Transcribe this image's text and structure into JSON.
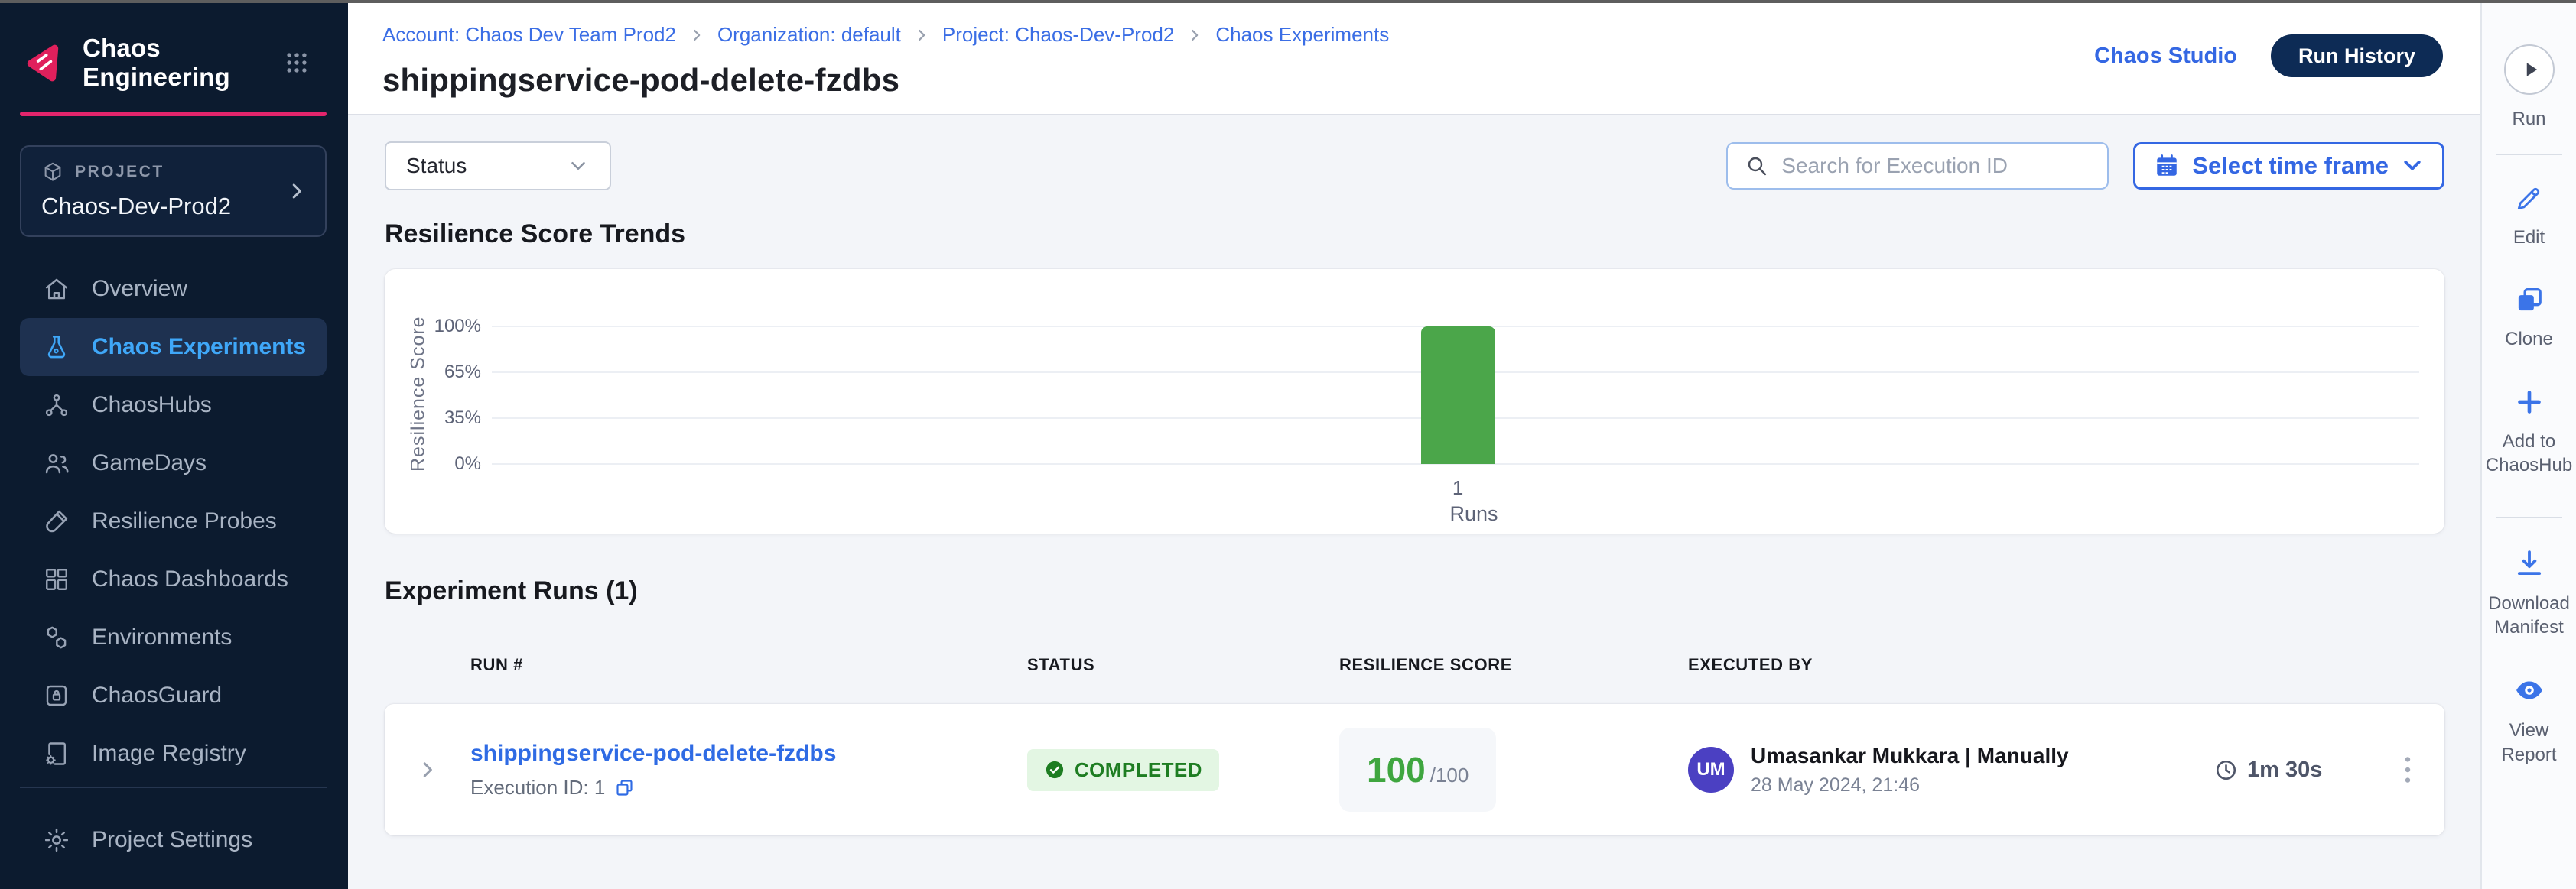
{
  "sidebar": {
    "app_title": "Chaos Engineering",
    "project": {
      "label": "PROJECT",
      "name": "Chaos-Dev-Prod2"
    },
    "items": [
      {
        "label": "Overview",
        "icon": "home-icon",
        "active": false
      },
      {
        "label": "Chaos Experiments",
        "icon": "flask-icon",
        "active": true
      },
      {
        "label": "ChaosHubs",
        "icon": "hub-icon",
        "active": false
      },
      {
        "label": "GameDays",
        "icon": "people-icon",
        "active": false
      },
      {
        "label": "Resilience Probes",
        "icon": "probe-icon",
        "active": false
      },
      {
        "label": "Chaos Dashboards",
        "icon": "dashboard-icon",
        "active": false
      },
      {
        "label": "Environments",
        "icon": "hexagons-icon",
        "active": false
      },
      {
        "label": "ChaosGuard",
        "icon": "lock-icon",
        "active": false
      },
      {
        "label": "Image Registry",
        "icon": "registry-icon",
        "active": false
      }
    ],
    "settings_label": "Project Settings"
  },
  "header": {
    "breadcrumb": [
      "Account: Chaos Dev Team Prod2",
      "Organization: default",
      "Project: Chaos-Dev-Prod2",
      "Chaos Experiments"
    ],
    "page_title": "shippingservice-pod-delete-fzdbs",
    "actions": {
      "chaos_studio": "Chaos Studio",
      "run_history": "Run History"
    }
  },
  "filters": {
    "status_label": "Status",
    "search_placeholder": "Search for Execution ID",
    "time_frame_label": "Select time frame"
  },
  "chart_data": {
    "type": "bar",
    "title": "Resilience Score Trends",
    "ylabel": "Resilience Score",
    "xlabel": "Runs",
    "yticks": [
      "100%",
      "65%",
      "35%",
      "0%"
    ],
    "categories": [
      "1"
    ],
    "values": [
      100
    ],
    "ylim": [
      0,
      100
    ],
    "bar_color": "#4BA64A",
    "grid": "horizontal",
    "legend": "none"
  },
  "runs": {
    "section_title": "Experiment Runs (1)",
    "columns": [
      "RUN #",
      "STATUS",
      "RESILIENCE SCORE",
      "EXECUTED BY"
    ],
    "rows": [
      {
        "name": "shippingservice-pod-delete-fzdbs",
        "execution_id": "Execution ID: 1",
        "status": "COMPLETED",
        "score": "100",
        "score_total": "/100",
        "avatar": "UM",
        "executed_by": "Umasankar Mukkara | Manually",
        "executed_at": "28 May 2024, 21:46",
        "duration": "1m 30s"
      }
    ]
  },
  "right_rail": {
    "items": [
      {
        "label": "Run",
        "icon": "play-icon"
      },
      {
        "label": "Edit",
        "icon": "pencil-icon"
      },
      {
        "label": "Clone",
        "icon": "clone-icon"
      },
      {
        "label": "Add to ChaosHub",
        "icon": "plus-icon"
      },
      {
        "label": "Download Manifest",
        "icon": "download-icon"
      },
      {
        "label": "View Report",
        "icon": "eye-icon"
      }
    ]
  },
  "colors": {
    "accent": "#3467E3",
    "link": "#3B6EE5",
    "pink": "#E3256C",
    "navy": "#0D2B55",
    "sidebar_bg": "#0C1B2F",
    "sidebar_active_bg": "#1E3150",
    "sidebar_active_text": "#3FA7F8",
    "bar_green": "#4BA64A",
    "score_green": "#3FA63F",
    "badge_bg": "#E3F6E3",
    "badge_text": "#1E7D22",
    "avatar_bg": "#4B40C2",
    "content_bg": "#F3F5F9"
  }
}
